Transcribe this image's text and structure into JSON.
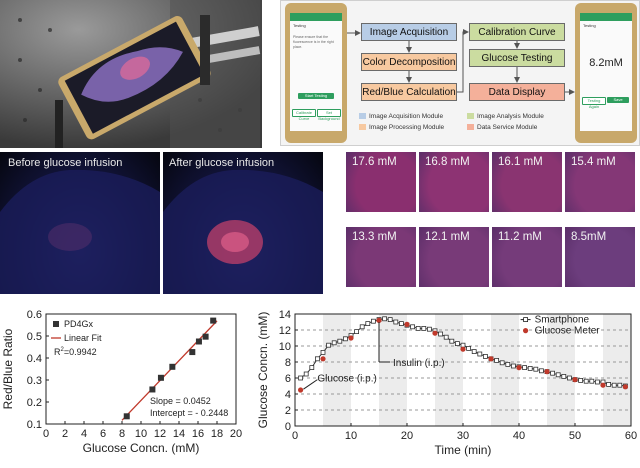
{
  "rig_photo": {
    "description_icon": "smartphone-on-optical-table"
  },
  "flow": {
    "phone_left": {
      "title": "Testing",
      "text": "Please ensure that the fluorescence is in the right place.",
      "btn_start": "Start Testing",
      "btn_left": "Calibrate Curve",
      "btn_right": "Set Background"
    },
    "phone_right": {
      "title": "Testing",
      "result": "8.2mM",
      "btn_left": "Testing Again",
      "btn_right": "Save Results"
    },
    "boxes": {
      "image_acquisition": "Image Acquisition",
      "color_decomposition": "Color Decomposition",
      "red_blue_calculation": "Red/Blue Calculation",
      "calibration_curve": "Calibration Curve",
      "glucose_testing": "Glucose Testing",
      "data_display": "Data Display"
    },
    "legend": {
      "image_acquisition_module": "Image Acquisition Module",
      "image_processing_module": "Image Processing Module",
      "image_analysis_module": "Image Analysis Module",
      "data_service_module": "Data Service Module"
    },
    "colors": {
      "acquisition": "#b8cde6",
      "processing": "#f7c9a0",
      "analysis": "#cbdca0",
      "service": "#f4b09a"
    }
  },
  "arms": {
    "before": "Before glucose infusion",
    "after": "After glucose infusion"
  },
  "tiles": [
    "17.6 mM",
    "16.8 mM",
    "16.1 mM",
    "15.4 mM",
    "13.3 mM",
    "12.1 mM",
    "11.2 mM",
    "8.5mM"
  ],
  "tile_colors": [
    "#8a2f6f",
    "#8d3373",
    "#8a3471",
    "#843776",
    "#7b3876",
    "#783a78",
    "#753b7a",
    "#6c3d7d"
  ],
  "chart_data": [
    {
      "type": "scatter",
      "xlabel": "Glucose Concn. (mM)",
      "ylabel": "Red/Blue Ratio",
      "xlim": [
        0,
        20
      ],
      "ylim": [
        0.1,
        0.6
      ],
      "xticks": [
        "0",
        "2",
        "4",
        "6",
        "8",
        "10",
        "12",
        "14",
        "16",
        "18",
        "20"
      ],
      "yticks": [
        "0.1",
        "0.2",
        "0.3",
        "0.4",
        "0.5",
        "0.6"
      ],
      "series": [
        {
          "name": "PD4Gx",
          "x": [
            8.5,
            11.2,
            12.1,
            13.3,
            15.4,
            16.1,
            16.8,
            17.6
          ],
          "y": [
            0.135,
            0.257,
            0.31,
            0.36,
            0.427,
            0.475,
            0.497,
            0.57
          ]
        }
      ],
      "fit": {
        "name": "Linear Fit",
        "slope": 0.0452,
        "intercept": -0.2448
      },
      "annotations": {
        "r2_prefix": "R",
        "r2_sup": "2",
        "r2_value": "=0.9942",
        "slope": "Slope = 0.0452",
        "intercept": "Intercept = - 0.2448"
      },
      "colors": {
        "points": "#333333",
        "fit": "#c0392b"
      }
    },
    {
      "type": "line",
      "xlabel": "Time (min)",
      "ylabel": "Glucose Concn. (mM)",
      "xlim": [
        0,
        60
      ],
      "ylim": [
        0,
        14
      ],
      "xticks": [
        "0",
        "10",
        "20",
        "30",
        "40",
        "50",
        "60"
      ],
      "yticks": [
        "0",
        "2",
        "4",
        "6",
        "8",
        "10",
        "12",
        "14"
      ],
      "series": [
        {
          "name": "Smartphone",
          "x": [
            1,
            2,
            3,
            4,
            5,
            6,
            7,
            8,
            9,
            10,
            11,
            12,
            13,
            14,
            15,
            16,
            17,
            18,
            19,
            20,
            21,
            22,
            23,
            24,
            25,
            26,
            27,
            28,
            29,
            30,
            31,
            32,
            33,
            34,
            35,
            36,
            37,
            38,
            39,
            40,
            41,
            42,
            43,
            44,
            45,
            46,
            47,
            48,
            49,
            50,
            51,
            52,
            53,
            54,
            55,
            56,
            57,
            58,
            59
          ],
          "y": [
            6.0,
            6.5,
            7.3,
            8.4,
            9.2,
            10.1,
            10.4,
            10.6,
            10.9,
            11.3,
            11.8,
            12.4,
            12.8,
            13.1,
            13.3,
            13.4,
            13.3,
            13.0,
            12.8,
            12.6,
            12.4,
            12.2,
            12.2,
            12.1,
            11.9,
            11.5,
            11.1,
            10.6,
            10.3,
            10.1,
            9.7,
            9.3,
            9.0,
            8.7,
            8.4,
            8.2,
            7.9,
            7.7,
            7.5,
            7.4,
            7.3,
            7.2,
            7.1,
            6.9,
            6.8,
            6.6,
            6.4,
            6.2,
            6.0,
            5.8,
            5.7,
            5.6,
            5.6,
            5.5,
            5.5,
            5.2,
            5.1,
            5.1,
            5.0
          ]
        },
        {
          "name": "Glucose Meter",
          "x": [
            1,
            5,
            10,
            15,
            20,
            25,
            30,
            35,
            40,
            45,
            50,
            55,
            59
          ],
          "y": [
            4.5,
            8.4,
            11.0,
            13.2,
            12.7,
            11.6,
            9.6,
            8.4,
            7.3,
            6.8,
            5.8,
            5.1,
            4.9
          ]
        }
      ],
      "annotations": {
        "insulin": "Insulin (i.p.)",
        "glucose": "Glucose (i.p.)"
      },
      "colors": {
        "smartphone": "#333333",
        "meter": "#c0392b"
      }
    }
  ]
}
